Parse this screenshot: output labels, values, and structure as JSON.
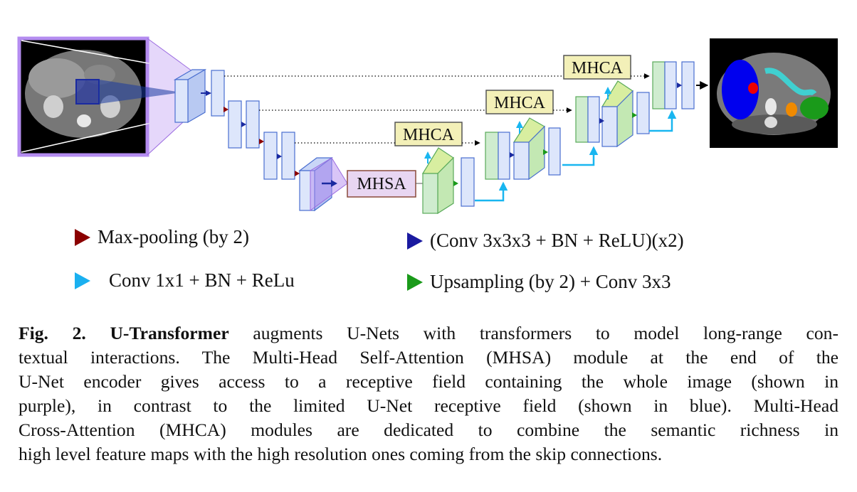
{
  "modules": {
    "mhsa": "MHSA",
    "mhca": "MHCA"
  },
  "legend": [
    {
      "label": "Max-pooling (by 2)",
      "color": "#8b0000"
    },
    {
      "label": "(Conv 3x3x3 + BN + ReLU)(x2)",
      "color": "#1a1aa0"
    },
    {
      "label": "Conv 1x1 + BN + ReLu",
      "color": "#1ab0f0"
    },
    {
      "label": "Upsampling (by 2) + Conv 3x3",
      "color": "#1a9a1a"
    }
  ],
  "caption": {
    "fig_label": "Fig. 2.",
    "model_name": "U-Transformer",
    "lines": [
      " augments U-Nets with transformers to model long-range con-",
      "textual interactions. The Multi-Head Self-Attention (MHSA) module at the end of the",
      "U-Net encoder gives access to a receptive field containing the whole image (shown in",
      "purple), in contrast to the limited U-Net receptive field (shown in blue). Multi-Head",
      "Cross-Attention (MHCA) modules are dedicated to combine the semantic richness in",
      "high level feature maps with the high resolution ones coming from the skip connections."
    ]
  },
  "colors": {
    "encoder_fill": "#dde6fb",
    "encoder_stroke": "#4a6fd0",
    "decoder_fill": "#cfeccf",
    "decoder_stroke": "#5aaa5a",
    "mhsa_fill": "#e8d6f2",
    "mhca_fill": "#f3f0b8",
    "receptive_purple": "#b48cf0",
    "receptive_blue": "#1a2aa0"
  }
}
